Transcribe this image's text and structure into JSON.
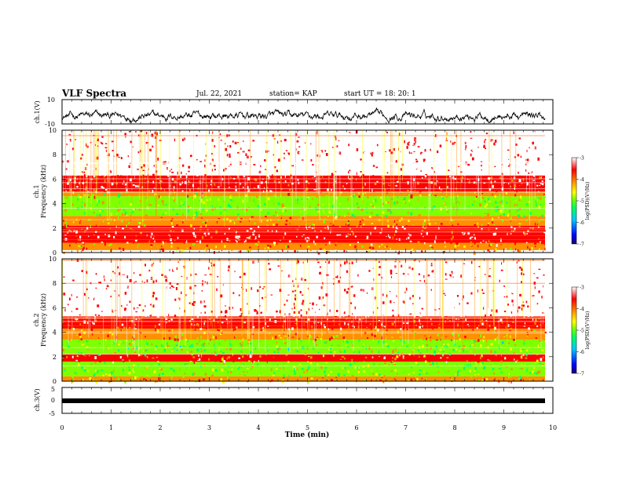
{
  "header": {
    "title": "VLF Spectra",
    "date": "Jul. 22, 2021",
    "station": "station= KAP",
    "start": "start UT = 18: 20: 1"
  },
  "colors": {
    "spectrogram_background": "#ff3a1c",
    "waveform": "#000000",
    "colormap": [
      "#1a0066",
      "#0000ff",
      "#00c8ff",
      "#00ff60",
      "#80ff00",
      "#ffff00",
      "#ff9000",
      "#ff0000",
      "#ffffff"
    ]
  },
  "chart_data": [
    {
      "type": "line",
      "panel": "ch1-waveform",
      "ylabel": "ch.1(V)",
      "ylim": [
        -10,
        10
      ],
      "yticks": [
        "10",
        "-10"
      ],
      "xlim": [
        0,
        10
      ],
      "description_series": "noisy waveform fluctuating roughly between -8 and 2 V"
    },
    {
      "type": "heatmap",
      "panel": "ch1-spectrogram",
      "ylabel_line1": "ch.1",
      "ylabel_line2": "Frequency (kHz)",
      "ylim": [
        0,
        10
      ],
      "yticks": [
        "0",
        "2",
        "4",
        "6",
        "8",
        "10"
      ],
      "xlim": [
        0,
        10
      ],
      "colorbar": {
        "label": "log(PSD)(V²/Hz)",
        "range": [
          -7,
          -3
        ],
        "ticks": [
          "-3",
          "-4",
          "-5",
          "-6",
          "-7"
        ]
      },
      "bands_khz": [
        {
          "from": 0.2,
          "to": 0.8,
          "level": -4.3
        },
        {
          "from": 0.8,
          "to": 2.2,
          "level": -3.6
        },
        {
          "from": 2.2,
          "to": 3.0,
          "level": -4.5
        },
        {
          "from": 3.0,
          "to": 4.6,
          "level": -5.0
        },
        {
          "from": 4.6,
          "to": 5.0,
          "level": -4.6
        },
        {
          "from": 5.0,
          "to": 6.3,
          "level": -3.7
        },
        {
          "from": 6.3,
          "to": 10.0,
          "level": -3.3
        }
      ]
    },
    {
      "type": "heatmap",
      "panel": "ch2-spectrogram",
      "ylabel_line1": "ch.2",
      "ylabel_line2": "Frequency (kHz)",
      "ylim": [
        0,
        10
      ],
      "yticks": [
        "0",
        "2",
        "4",
        "6",
        "8",
        "10"
      ],
      "xlim": [
        0,
        10
      ],
      "colorbar": {
        "label": "log(PSD)(V²/Hz)",
        "range": [
          -7,
          -3
        ],
        "ticks": [
          "-3",
          "-4",
          "-5",
          "-6",
          "-7"
        ]
      },
      "bands_khz": [
        {
          "from": 0.0,
          "to": 0.4,
          "level": -4.5
        },
        {
          "from": 0.4,
          "to": 1.6,
          "level": -5.0
        },
        {
          "from": 1.6,
          "to": 2.2,
          "level": -4.0
        },
        {
          "from": 2.2,
          "to": 3.4,
          "level": -5.1
        },
        {
          "from": 3.4,
          "to": 4.3,
          "level": -4.4
        },
        {
          "from": 4.3,
          "to": 5.3,
          "level": -3.8
        },
        {
          "from": 5.3,
          "to": 10.0,
          "level": -3.3
        }
      ]
    },
    {
      "type": "line",
      "panel": "ch3-waveform",
      "ylabel": "ch.3(V)",
      "ylim": [
        -5,
        5
      ],
      "yticks": [
        "5",
        "0",
        "-5"
      ],
      "xlim": [
        0,
        10
      ],
      "xlabel": "Time (min)",
      "xticks": [
        "0",
        "1",
        "2",
        "3",
        "4",
        "5",
        "6",
        "7",
        "8",
        "9",
        "10"
      ],
      "description_series": "thick dense band near -1 V"
    }
  ]
}
